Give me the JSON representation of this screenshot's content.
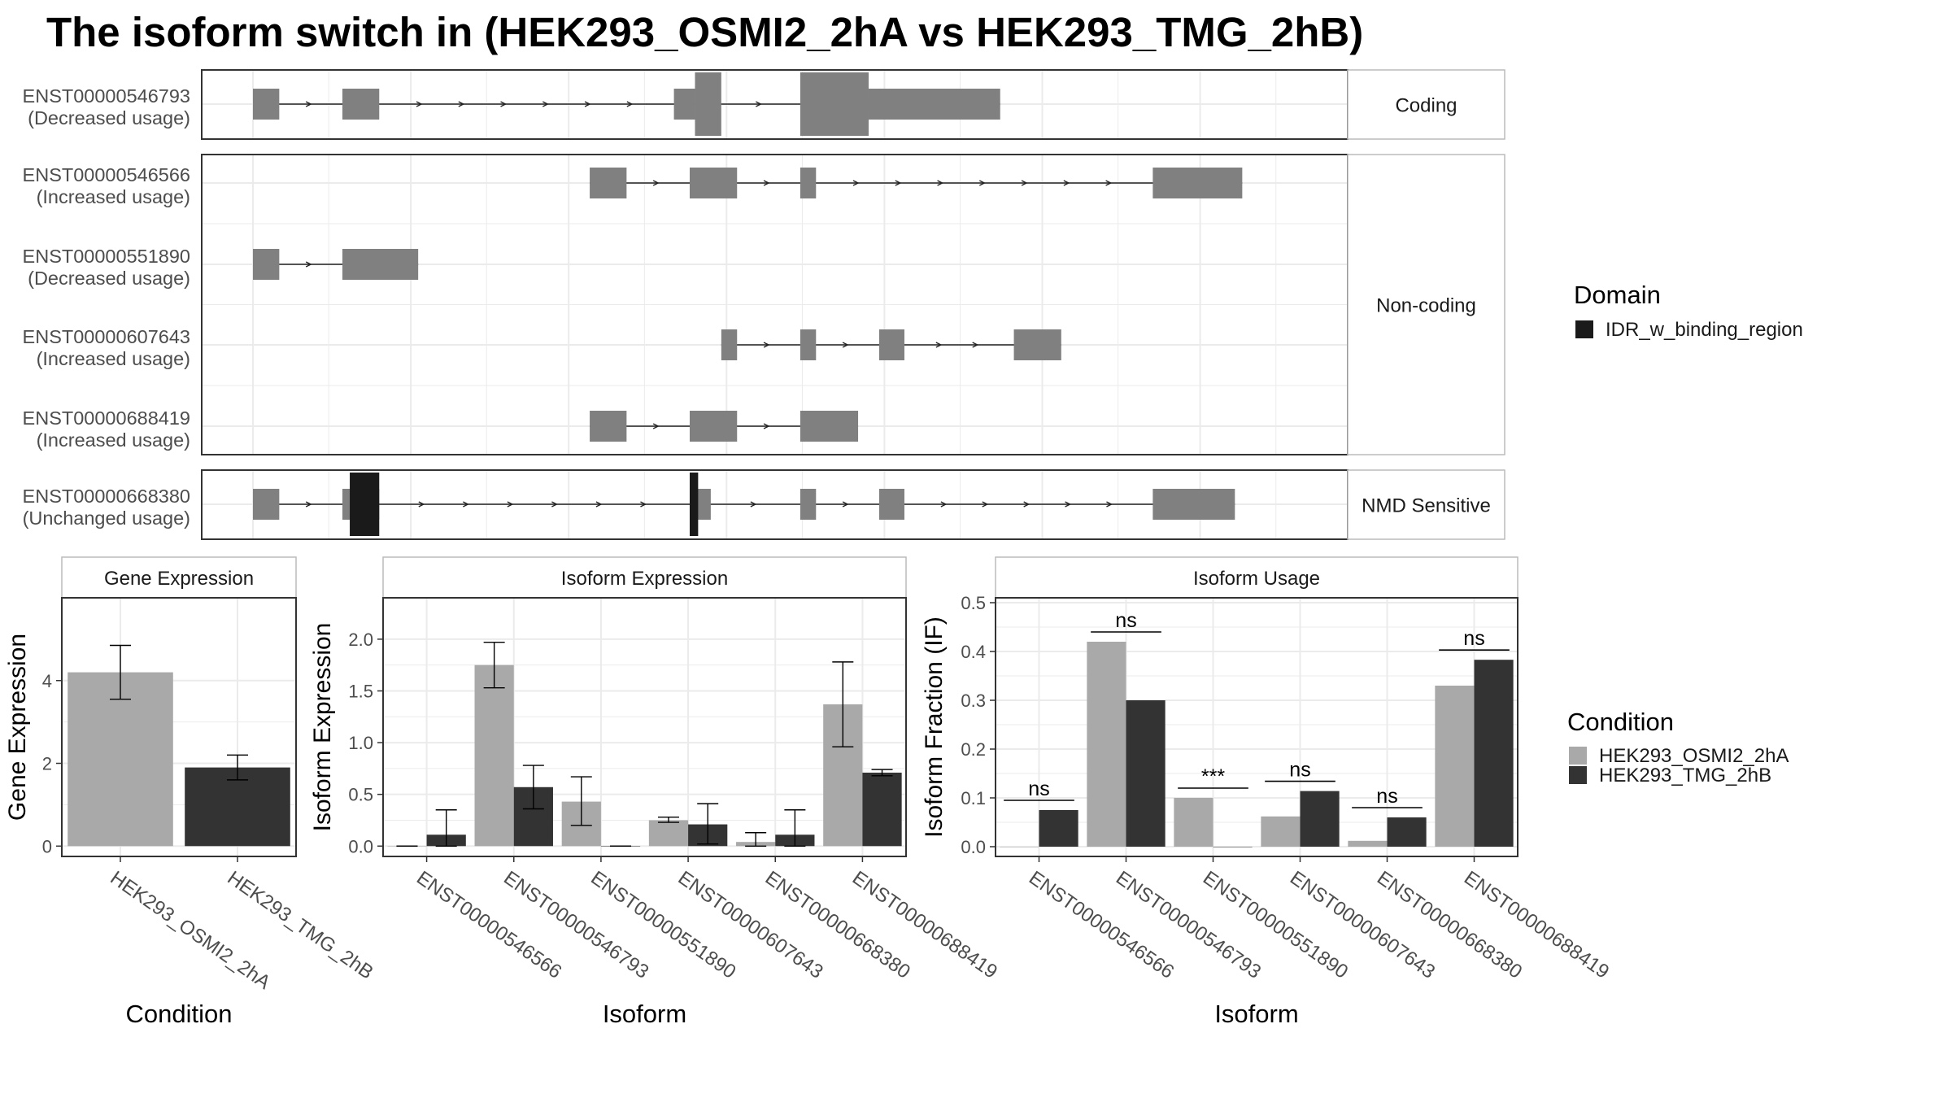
{
  "title": "The isoform switch in  (HEK293_OSMI2_2hA vs HEK293_TMG_2hB)",
  "colors": {
    "exon": "#808080",
    "domain": "#1a1a1a",
    "cond1": "#a9a9a9",
    "cond2": "#333333",
    "grid": "#ebebeb",
    "strip": "#ffffff",
    "panel_border": "#333333"
  },
  "legend_domain": {
    "title": "Domain",
    "items": [
      {
        "label": "IDR_w_binding_region",
        "color": "#1a1a1a"
      }
    ]
  },
  "legend_condition": {
    "title": "Condition",
    "items": [
      {
        "label": "HEK293_OSMI2_2hA",
        "color": "#a9a9a9"
      },
      {
        "label": "HEK293_TMG_2hB",
        "color": "#333333"
      }
    ]
  },
  "structure_groups": [
    {
      "strip": "Coding",
      "transcripts": [
        {
          "id": "ENST00000546793",
          "usage": "(Decreased usage)",
          "exons": [
            [
              0.0,
              0.025,
              "tall"
            ],
            [
              0.085,
              0.12,
              "tall"
            ],
            [
              0.4,
              0.42,
              "tall"
            ],
            [
              0.42,
              0.445,
              "big"
            ],
            [
              0.52,
              0.585,
              "big"
            ],
            [
              0.585,
              0.71,
              "tall"
            ]
          ],
          "domains": []
        }
      ]
    },
    {
      "strip": "Non-coding",
      "transcripts": [
        {
          "id": "ENST00000546566",
          "usage": "(Increased usage)",
          "exons": [
            [
              0.32,
              0.355,
              "tall"
            ],
            [
              0.415,
              0.46,
              "tall"
            ],
            [
              0.52,
              0.535,
              "tall"
            ],
            [
              0.855,
              0.94,
              "tall"
            ]
          ],
          "domains": []
        },
        {
          "id": "ENST00000551890",
          "usage": "(Decreased usage)",
          "exons": [
            [
              0.0,
              0.025,
              "tall"
            ],
            [
              0.085,
              0.157,
              "tall"
            ]
          ],
          "domains": []
        },
        {
          "id": "ENST00000607643",
          "usage": "(Increased usage)",
          "exons": [
            [
              0.445,
              0.46,
              "tall"
            ],
            [
              0.52,
              0.535,
              "tall"
            ],
            [
              0.595,
              0.619,
              "tall"
            ],
            [
              0.723,
              0.768,
              "tall"
            ]
          ],
          "domains": []
        },
        {
          "id": "ENST00000688419",
          "usage": "(Increased usage)",
          "exons": [
            [
              0.32,
              0.355,
              "tall"
            ],
            [
              0.415,
              0.46,
              "tall"
            ],
            [
              0.52,
              0.575,
              "tall"
            ]
          ],
          "domains": []
        }
      ]
    },
    {
      "strip": "NMD Sensitive",
      "transcripts": [
        {
          "id": "ENST00000668380",
          "usage": "(Unchanged usage)",
          "exons": [
            [
              0.0,
              0.025,
              "tall"
            ],
            [
              0.085,
              0.12,
              "tall"
            ],
            [
              0.415,
              0.435,
              "tall"
            ],
            [
              0.52,
              0.535,
              "tall"
            ],
            [
              0.595,
              0.619,
              "tall"
            ],
            [
              0.855,
              0.933,
              "tall"
            ]
          ],
          "domains": [
            [
              0.092,
              0.12
            ],
            [
              0.415,
              0.423
            ]
          ]
        }
      ]
    }
  ],
  "panels": {
    "gene": {
      "strip": "Gene Expression",
      "xlabel": "Condition",
      "ylabel": "Gene Expression"
    },
    "iso_exp": {
      "strip": "Isoform Expression",
      "xlabel": "Isoform",
      "ylabel": "Isoform Expression"
    },
    "iso_use": {
      "strip": "Isoform Usage",
      "xlabel": "Isoform",
      "ylabel": "Isoform Fraction (IF)"
    }
  },
  "chart_data": [
    {
      "type": "bar",
      "title": "Gene Expression",
      "xlabel": "Condition",
      "ylabel": "Gene Expression",
      "categories": [
        "HEK293_OSMI2_2hA",
        "HEK293_TMG_2hB"
      ],
      "values": [
        4.2,
        1.9
      ],
      "error_low": [
        3.55,
        1.6
      ],
      "error_high": [
        4.85,
        2.2
      ],
      "ylim": [
        -0.25,
        6.0
      ],
      "yticks": [
        0,
        2,
        4
      ]
    },
    {
      "type": "bar",
      "title": "Isoform Expression",
      "xlabel": "Isoform",
      "ylabel": "Isoform Expression",
      "categories": [
        "ENST00000546566",
        "ENST00000546793",
        "ENST00000551890",
        "ENST00000607643",
        "ENST00000668380",
        "ENST00000688419"
      ],
      "series": [
        {
          "name": "HEK293_OSMI2_2hA",
          "values": [
            0.0,
            1.75,
            0.43,
            0.25,
            0.04,
            1.37
          ],
          "error_low": [
            0.0,
            1.53,
            0.2,
            0.23,
            0.0,
            0.96
          ],
          "error_high": [
            0.0,
            1.97,
            0.67,
            0.28,
            0.13,
            1.78
          ]
        },
        {
          "name": "HEK293_TMG_2hB",
          "values": [
            0.11,
            0.57,
            0.0,
            0.21,
            0.11,
            0.71
          ],
          "error_low": [
            0.0,
            0.36,
            0.0,
            0.02,
            0.0,
            0.68
          ],
          "error_high": [
            0.35,
            0.78,
            0.0,
            0.41,
            0.35,
            0.74
          ]
        }
      ],
      "ylim": [
        -0.1,
        2.4
      ],
      "yticks": [
        0.0,
        0.5,
        1.0,
        1.5,
        2.0
      ],
      "ytick_labels": [
        "0.0",
        "0.5",
        "1.0",
        "1.5",
        "2.0"
      ]
    },
    {
      "type": "bar",
      "title": "Isoform Usage",
      "xlabel": "Isoform",
      "ylabel": "Isoform Fraction (IF)",
      "categories": [
        "ENST00000546566",
        "ENST00000546793",
        "ENST00000551890",
        "ENST00000607643",
        "ENST00000668380",
        "ENST00000688419"
      ],
      "series": [
        {
          "name": "HEK293_OSMI2_2hA",
          "values": [
            0.0,
            0.42,
            0.1,
            0.062,
            0.012,
            0.33
          ]
        },
        {
          "name": "HEK293_TMG_2hB",
          "values": [
            0.075,
            0.3,
            0.0,
            0.114,
            0.06,
            0.383
          ]
        }
      ],
      "significance": [
        "ns",
        "ns",
        "***",
        "ns",
        "ns",
        "ns"
      ],
      "ylim": [
        -0.02,
        0.51
      ],
      "yticks": [
        0.0,
        0.1,
        0.2,
        0.3,
        0.4,
        0.5
      ],
      "ytick_labels": [
        "0.0",
        "0.1",
        "0.2",
        "0.3",
        "0.4",
        "0.5"
      ]
    }
  ]
}
